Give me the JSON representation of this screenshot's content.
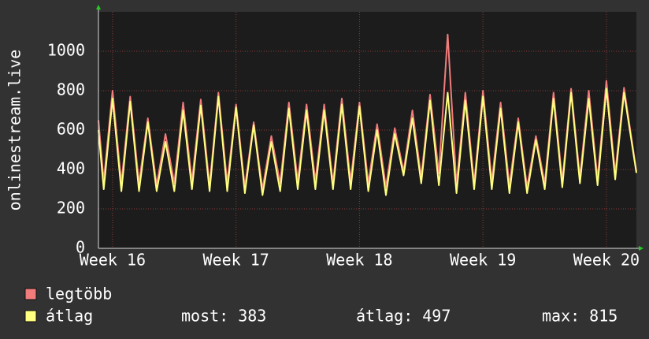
{
  "chart_data": {
    "type": "line",
    "y_label": "onlinestream.live",
    "x": [
      0,
      0.3,
      0.8,
      1.3,
      1.8,
      2.3,
      2.8,
      3.3,
      3.8,
      4.3,
      4.8,
      5.3,
      5.8,
      6.3,
      6.8,
      7.3,
      7.8,
      8.3,
      8.8,
      9.3,
      9.8,
      10.3,
      10.8,
      11.3,
      11.8,
      12.3,
      12.8,
      13.3,
      13.8,
      14.3,
      14.8,
      15.3,
      15.8,
      16.3,
      16.8,
      17.3,
      17.8,
      18.3,
      18.8,
      19.3,
      19.8,
      20.3,
      20.8,
      21.3,
      21.8,
      22.3,
      22.8,
      23.3,
      23.8,
      24.3,
      24.8,
      25.3,
      25.8,
      26.3,
      26.8,
      27.3,
      27.8,
      28.3,
      28.8,
      29.3,
      29.8,
      30.5
    ],
    "xlim": [
      0,
      30.5
    ],
    "xticks": [
      {
        "value": 0.8,
        "label": "Week 16"
      },
      {
        "value": 7.8,
        "label": "Week 17"
      },
      {
        "value": 14.8,
        "label": "Week 18"
      },
      {
        "value": 21.8,
        "label": "Week 19"
      },
      {
        "value": 28.8,
        "label": "Week 20"
      }
    ],
    "ylim": [
      0,
      1200
    ],
    "yticks": [
      0,
      200,
      400,
      600,
      800,
      1000
    ],
    "grid": true,
    "series": [
      {
        "name": "legtöbb",
        "color": "#f27c7c",
        "values": [
          650,
          340,
          800,
          330,
          770,
          330,
          660,
          320,
          580,
          330,
          740,
          340,
          755,
          320,
          790,
          330,
          730,
          310,
          640,
          300,
          570,
          330,
          740,
          340,
          730,
          340,
          730,
          330,
          760,
          340,
          740,
          330,
          630,
          310,
          610,
          390,
          700,
          360,
          780,
          380,
          1085,
          320,
          790,
          330,
          800,
          340,
          740,
          320,
          660,
          310,
          570,
          330,
          790,
          340,
          810,
          360,
          800,
          350,
          850,
          380,
          815,
          390
        ]
      },
      {
        "name": "átlag",
        "color": "#ffff80",
        "values": [
          600,
          300,
          760,
          290,
          745,
          290,
          640,
          290,
          540,
          290,
          700,
          300,
          725,
          290,
          770,
          290,
          715,
          280,
          625,
          270,
          540,
          290,
          710,
          300,
          700,
          300,
          700,
          300,
          730,
          300,
          720,
          290,
          600,
          270,
          580,
          370,
          660,
          330,
          750,
          320,
          790,
          280,
          750,
          300,
          770,
          300,
          710,
          280,
          640,
          280,
          550,
          300,
          760,
          310,
          790,
          330,
          760,
          320,
          810,
          350,
          790,
          383
        ]
      }
    ],
    "stats": [
      {
        "label": "most:",
        "value": 383
      },
      {
        "label": "átlag:",
        "value": 497
      },
      {
        "label": "max:",
        "value": 815
      }
    ]
  }
}
